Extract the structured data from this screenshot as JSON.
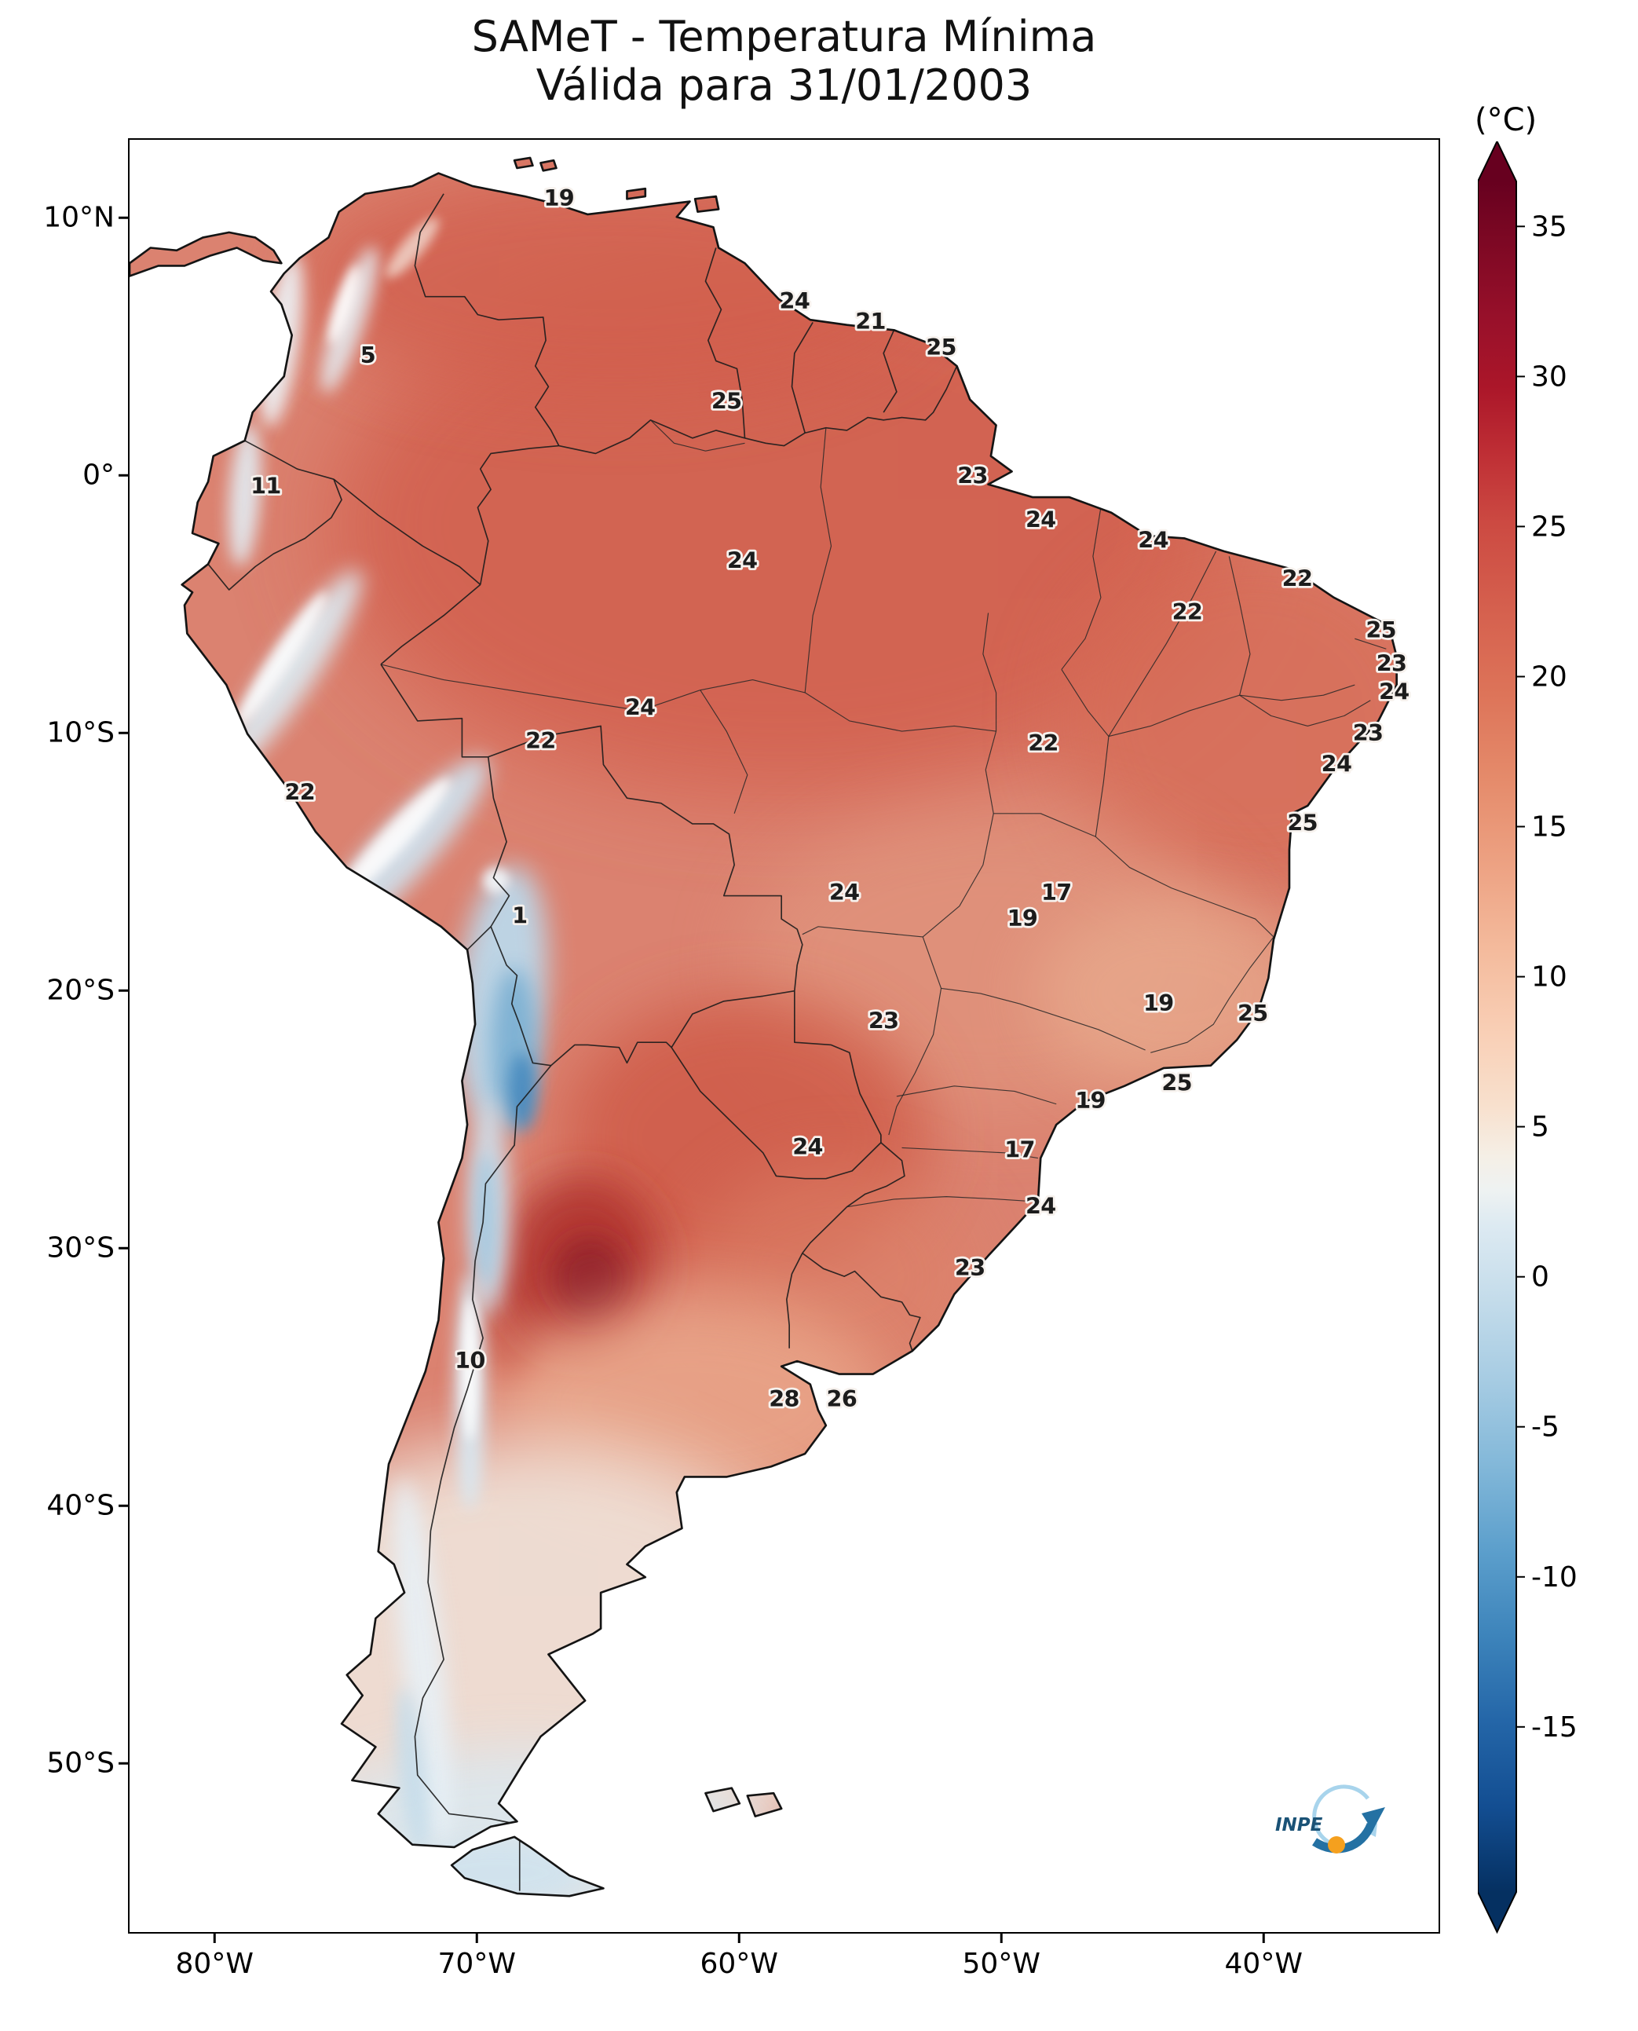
{
  "title": {
    "line1": "SAMeT - Temperatura Mínima",
    "line2": "Válida para 31/01/2003"
  },
  "axes": {
    "lat_ticks": [
      {
        "label": "10°N",
        "value": 10
      },
      {
        "label": "0°",
        "value": 0
      },
      {
        "label": "10°S",
        "value": -10
      },
      {
        "label": "20°S",
        "value": -20
      },
      {
        "label": "30°S",
        "value": -30
      },
      {
        "label": "40°S",
        "value": -40
      },
      {
        "label": "50°S",
        "value": -50
      }
    ],
    "lon_ticks": [
      {
        "label": "80°W",
        "value": -80
      },
      {
        "label": "70°W",
        "value": -70
      },
      {
        "label": "60°W",
        "value": -60
      },
      {
        "label": "50°W",
        "value": -50
      },
      {
        "label": "40°W",
        "value": -40
      }
    ]
  },
  "colorbar": {
    "unit": "(°C)",
    "ticks": [
      35,
      30,
      25,
      20,
      15,
      10,
      5,
      0,
      -5,
      -10,
      -15
    ],
    "scale_top": 36.5,
    "scale_bottom": -20.5,
    "top_color": "#67001f",
    "bottom_color": "#053061"
  },
  "map_labels": [
    {
      "v": "19",
      "lon": -66.9,
      "lat": 10.8
    },
    {
      "v": "24",
      "lon": -57.9,
      "lat": 6.8
    },
    {
      "v": "21",
      "lon": -55.0,
      "lat": 6.0
    },
    {
      "v": "25",
      "lon": -52.3,
      "lat": 5.0
    },
    {
      "v": "25",
      "lon": -60.5,
      "lat": 2.9
    },
    {
      "v": "5",
      "lon": -74.2,
      "lat": 4.7
    },
    {
      "v": "11",
      "lon": -78.1,
      "lat": -0.4
    },
    {
      "v": "23",
      "lon": -51.1,
      "lat": 0.0
    },
    {
      "v": "24",
      "lon": -48.5,
      "lat": -1.7
    },
    {
      "v": "24",
      "lon": -44.2,
      "lat": -2.5
    },
    {
      "v": "24",
      "lon": -59.9,
      "lat": -3.3
    },
    {
      "v": "22",
      "lon": -38.7,
      "lat": -4.0
    },
    {
      "v": "22",
      "lon": -42.9,
      "lat": -5.3
    },
    {
      "v": "25",
      "lon": -35.5,
      "lat": -6.0
    },
    {
      "v": "23",
      "lon": -35.1,
      "lat": -7.3
    },
    {
      "v": "24",
      "lon": -35.0,
      "lat": -8.4
    },
    {
      "v": "24",
      "lon": -63.8,
      "lat": -9.0
    },
    {
      "v": "22",
      "lon": -67.6,
      "lat": -10.3
    },
    {
      "v": "22",
      "lon": -48.4,
      "lat": -10.4
    },
    {
      "v": "23",
      "lon": -36.0,
      "lat": -10.0
    },
    {
      "v": "24",
      "lon": -37.2,
      "lat": -11.2
    },
    {
      "v": "22",
      "lon": -76.8,
      "lat": -12.3
    },
    {
      "v": "25",
      "lon": -38.5,
      "lat": -13.5
    },
    {
      "v": "24",
      "lon": -56.0,
      "lat": -16.2
    },
    {
      "v": "17",
      "lon": -47.9,
      "lat": -16.2
    },
    {
      "v": "19",
      "lon": -49.2,
      "lat": -17.2
    },
    {
      "v": "1",
      "lon": -68.4,
      "lat": -17.1
    },
    {
      "v": "23",
      "lon": -54.5,
      "lat": -21.2
    },
    {
      "v": "19",
      "lon": -44.0,
      "lat": -20.5
    },
    {
      "v": "25",
      "lon": -40.4,
      "lat": -20.9
    },
    {
      "v": "25",
      "lon": -43.3,
      "lat": -23.6
    },
    {
      "v": "19",
      "lon": -46.6,
      "lat": -24.3
    },
    {
      "v": "24",
      "lon": -57.4,
      "lat": -26.1
    },
    {
      "v": "17",
      "lon": -49.3,
      "lat": -26.2
    },
    {
      "v": "24",
      "lon": -48.5,
      "lat": -28.4
    },
    {
      "v": "23",
      "lon": -51.2,
      "lat": -30.8
    },
    {
      "v": "10",
      "lon": -70.3,
      "lat": -34.4
    },
    {
      "v": "28",
      "lon": -58.3,
      "lat": -35.9
    },
    {
      "v": "26",
      "lon": -56.1,
      "lat": -35.9
    }
  ],
  "logo": {
    "text": "INPE"
  }
}
